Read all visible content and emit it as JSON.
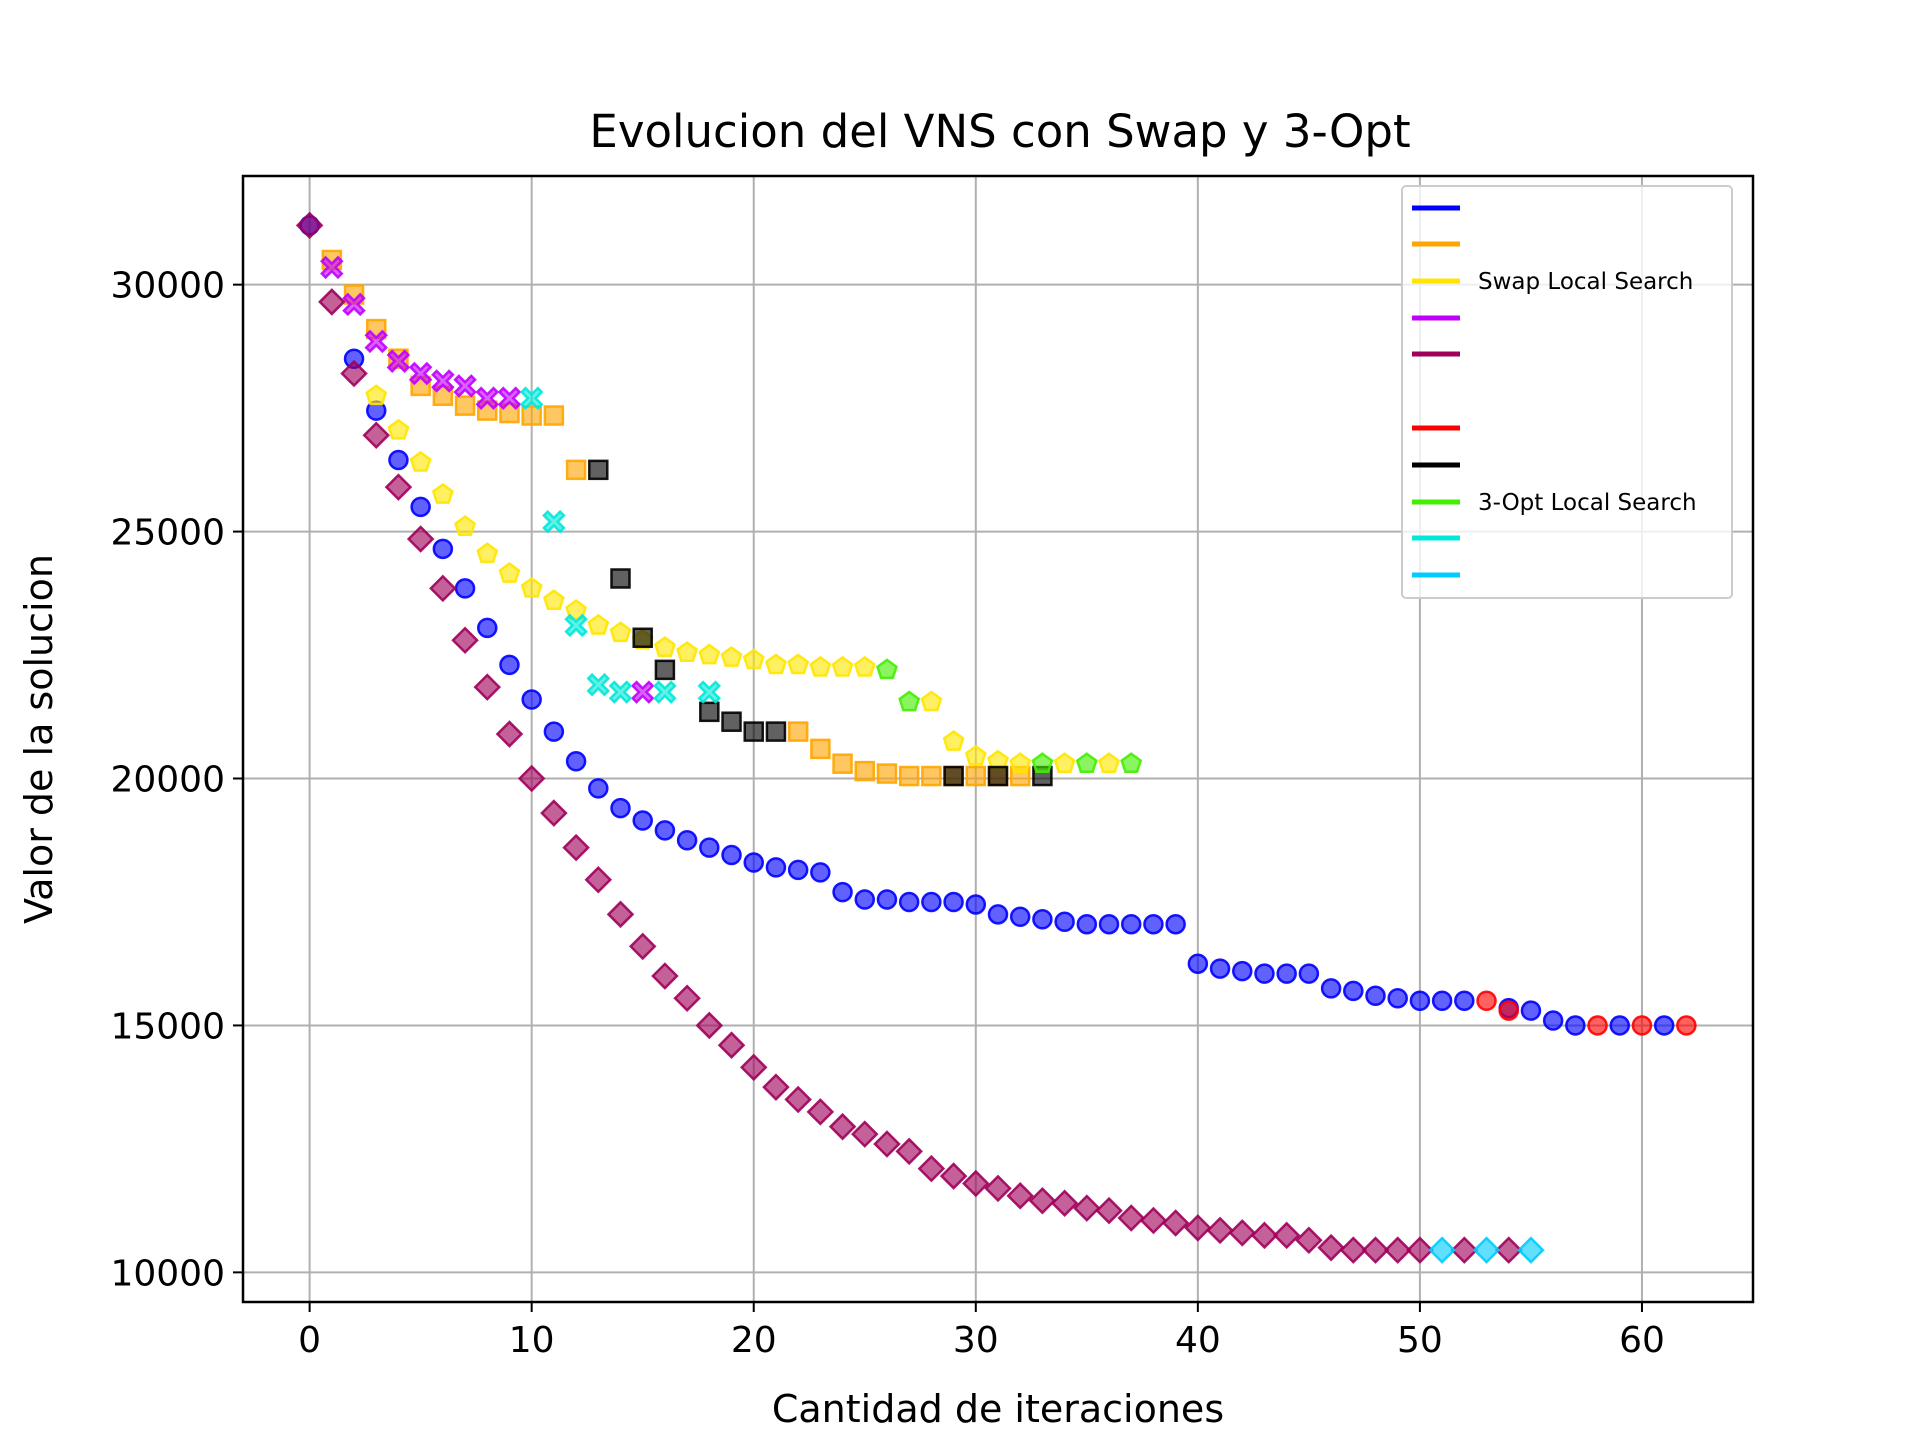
{
  "chart_data": {
    "type": "scatter",
    "title": "Evolucion del VNS con Swap y 3-Opt",
    "xlabel": "Cantidad de iteraciones",
    "ylabel": "Valor de la solucion",
    "xlim": [
      -3,
      65
    ],
    "ylim": [
      9400,
      32200
    ],
    "xticks": [
      0,
      10,
      20,
      30,
      40,
      50,
      60
    ],
    "yticks": [
      10000,
      15000,
      20000,
      25000,
      30000
    ],
    "grid": true,
    "legend_position": "top-right",
    "series": [
      {
        "name": "",
        "color": "#0000ff",
        "marker": "circle",
        "x": [
          0,
          2,
          3,
          4,
          5,
          6,
          7,
          8,
          9,
          10,
          11,
          12,
          13,
          14,
          15,
          16,
          17,
          18,
          19,
          20,
          21,
          22,
          23,
          24,
          25,
          26,
          27,
          28,
          29,
          30,
          31,
          32,
          33,
          34,
          35,
          36,
          37,
          38,
          39,
          40,
          41,
          42,
          43,
          44,
          45,
          46,
          47,
          48,
          49,
          50,
          51,
          52,
          54,
          55,
          56,
          57,
          59,
          61
        ],
        "y": [
          31200,
          28500,
          27450,
          26450,
          25500,
          24650,
          23850,
          23050,
          22300,
          21600,
          20950,
          20350,
          19800,
          19400,
          19150,
          18950,
          18750,
          18600,
          18450,
          18300,
          18200,
          18150,
          18100,
          17700,
          17550,
          17550,
          17500,
          17500,
          17500,
          17450,
          17250,
          17200,
          17150,
          17100,
          17050,
          17050,
          17050,
          17050,
          17050,
          16250,
          16150,
          16100,
          16050,
          16050,
          16050,
          15750,
          15700,
          15600,
          15550,
          15500,
          15500,
          15500,
          15350,
          15300,
          15100,
          15000,
          15000,
          15000
        ]
      },
      {
        "name": "",
        "color": "#ffa500",
        "marker": "square",
        "x": [
          1,
          2,
          3,
          4,
          5,
          6,
          7,
          8,
          9,
          10,
          11,
          12,
          22,
          23,
          24,
          25,
          26,
          27,
          28,
          29,
          30,
          31,
          32
        ],
        "y": [
          30500,
          29800,
          29100,
          28500,
          27950,
          27750,
          27550,
          27450,
          27400,
          27350,
          27350,
          26250,
          20950,
          20600,
          20300,
          20150,
          20100,
          20050,
          20050,
          20050,
          20050,
          20050,
          20050
        ]
      },
      {
        "name": "Swap Local Search",
        "color": "#ffe600",
        "marker": "pentagon",
        "x": [
          3,
          4,
          5,
          6,
          7,
          8,
          9,
          10,
          11,
          12,
          13,
          14,
          15,
          16,
          17,
          18,
          19,
          20,
          21,
          22,
          23,
          24,
          25,
          28,
          29,
          30,
          31,
          32,
          34,
          36
        ],
        "y": [
          27750,
          27050,
          26400,
          25750,
          25100,
          24550,
          24150,
          23850,
          23600,
          23400,
          23100,
          22950,
          22800,
          22650,
          22550,
          22500,
          22450,
          22400,
          22300,
          22300,
          22250,
          22250,
          22250,
          21550,
          20750,
          20450,
          20350,
          20300,
          20300,
          20300
        ]
      },
      {
        "name": "",
        "color": "#c000ff",
        "marker": "x",
        "x": [
          1,
          2,
          3,
          4,
          5,
          6,
          7,
          8,
          9,
          15
        ],
        "y": [
          30350,
          29600,
          28850,
          28450,
          28200,
          28050,
          27950,
          27700,
          27700,
          21750
        ]
      },
      {
        "name": "",
        "color": "#a0005a",
        "marker": "diamond",
        "x": [
          0,
          1,
          2,
          3,
          4,
          5,
          6,
          7,
          8,
          9,
          10,
          11,
          12,
          13,
          14,
          15,
          16,
          17,
          18,
          19,
          20,
          21,
          22,
          23,
          24,
          25,
          26,
          27,
          28,
          29,
          30,
          31,
          32,
          33,
          34,
          35,
          36,
          37,
          38,
          39,
          40,
          41,
          42,
          43,
          44,
          45,
          46,
          47,
          48,
          49,
          50,
          52,
          54
        ],
        "y": [
          31200,
          29650,
          28200,
          26950,
          25900,
          24850,
          23850,
          22800,
          21850,
          20900,
          20000,
          19300,
          18600,
          17950,
          17250,
          16600,
          16000,
          15550,
          15000,
          14600,
          14150,
          13750,
          13500,
          13250,
          12950,
          12800,
          12600,
          12450,
          12100,
          11950,
          11800,
          11700,
          11550,
          11450,
          11400,
          11300,
          11250,
          11100,
          11050,
          11000,
          10900,
          10850,
          10800,
          10750,
          10750,
          10650,
          10500,
          10450,
          10450,
          10450,
          10450,
          10450,
          10450
        ]
      },
      {
        "name": "",
        "color": "#ff0000",
        "marker": "circle",
        "x": [
          53,
          54,
          58,
          60,
          62
        ],
        "y": [
          15500,
          15300,
          15000,
          15000,
          15000
        ]
      },
      {
        "name": "",
        "color": "#000000",
        "marker": "square",
        "x": [
          13,
          14,
          15,
          16,
          18,
          19,
          20,
          21,
          29,
          31,
          33
        ],
        "y": [
          26250,
          24050,
          22850,
          22200,
          21350,
          21150,
          20950,
          20950,
          20050,
          20050,
          20050
        ]
      },
      {
        "name": "3-Opt Local Search",
        "color": "#44ee00",
        "marker": "pentagon",
        "x": [
          26,
          27,
          33,
          35,
          37
        ],
        "y": [
          22200,
          21550,
          20300,
          20300,
          20300
        ]
      },
      {
        "name": "",
        "color": "#00e8d8",
        "marker": "x",
        "x": [
          10,
          11,
          12,
          13,
          14,
          16,
          18
        ],
        "y": [
          27700,
          25200,
          23100,
          21900,
          21750,
          21750,
          21750
        ]
      },
      {
        "name": "",
        "color": "#00ccff",
        "marker": "diamond",
        "x": [
          51,
          53,
          55
        ],
        "y": [
          10450,
          10450,
          10450
        ]
      }
    ]
  }
}
